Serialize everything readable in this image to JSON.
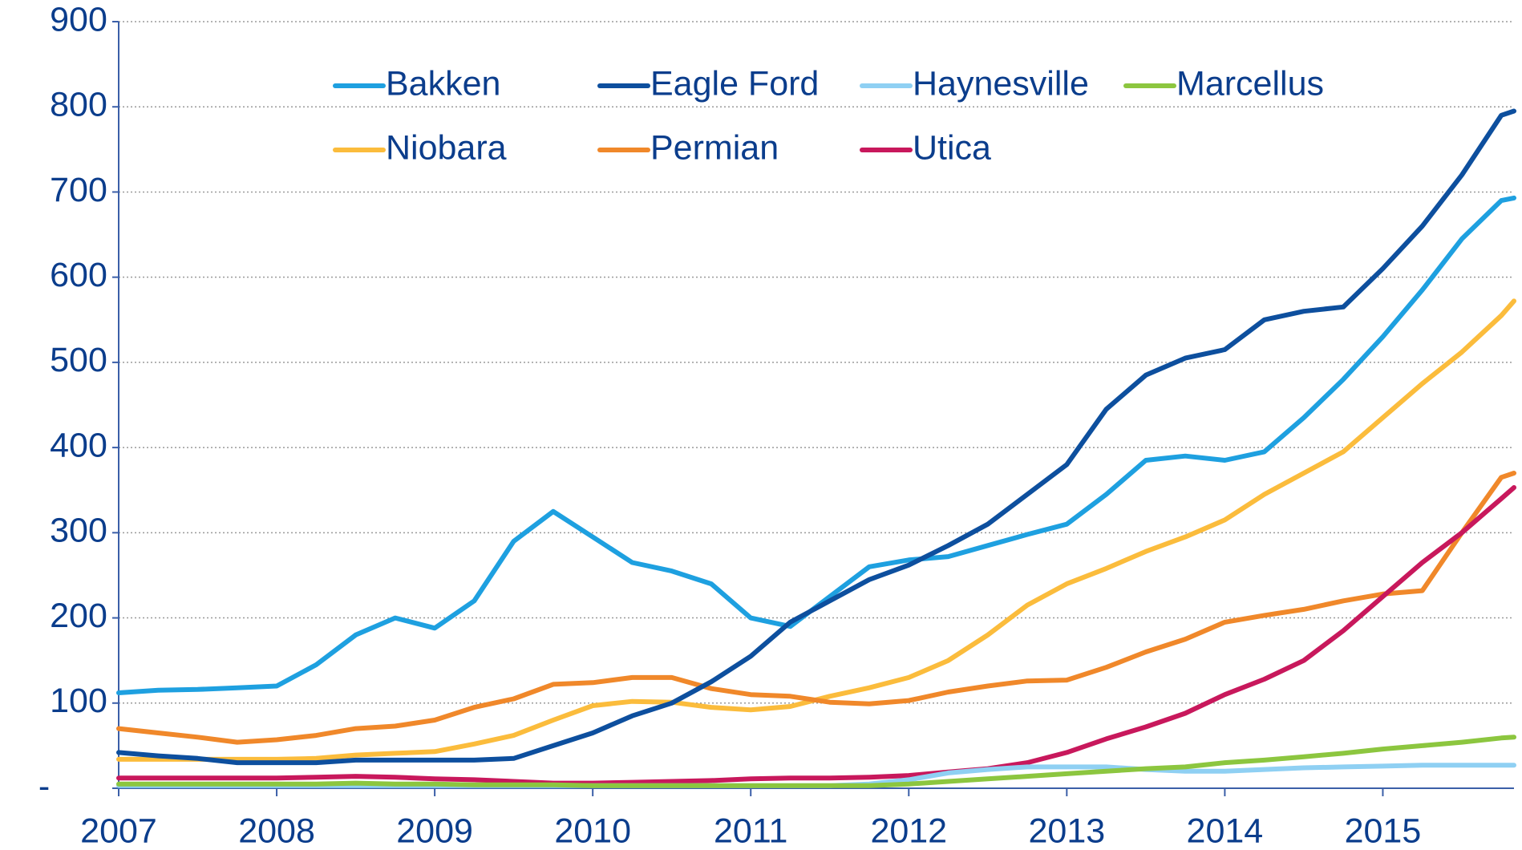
{
  "chart_data": {
    "type": "line",
    "x": [
      2007,
      2007.25,
      2007.5,
      2007.75,
      2008,
      2008.25,
      2008.5,
      2008.75,
      2009,
      2009.25,
      2009.5,
      2009.75,
      2010,
      2010.25,
      2010.5,
      2010.75,
      2011,
      2011.25,
      2011.5,
      2011.75,
      2012,
      2012.25,
      2012.5,
      2012.75,
      2013,
      2013.25,
      2013.5,
      2013.75,
      2014,
      2014.25,
      2014.5,
      2014.75,
      2015,
      2015.25,
      2015.5,
      2015.75,
      2015.83
    ],
    "series": [
      {
        "name": "Bakken",
        "color": "#1ea0e0",
        "values": [
          112,
          115,
          116,
          118,
          120,
          145,
          180,
          200,
          188,
          220,
          290,
          325,
          295,
          265,
          255,
          240,
          200,
          190,
          225,
          260,
          268,
          272,
          285,
          298,
          310,
          345,
          385,
          390,
          385,
          395,
          435,
          480,
          530,
          585,
          645,
          690,
          693
        ]
      },
      {
        "name": "Eagle Ford",
        "color": "#0d4f9e",
        "values": [
          42,
          38,
          35,
          30,
          30,
          30,
          33,
          33,
          33,
          33,
          35,
          50,
          65,
          85,
          100,
          125,
          155,
          195,
          220,
          245,
          262,
          285,
          310,
          345,
          380,
          445,
          485,
          505,
          515,
          550,
          560,
          565,
          610,
          660,
          720,
          790,
          795
        ]
      },
      {
        "name": "Haynesville",
        "color": "#8fd0f3",
        "values": [
          3,
          3,
          3,
          3,
          3,
          3,
          3,
          3,
          3,
          3,
          3,
          3,
          3,
          3,
          3,
          3,
          3,
          3,
          3,
          5,
          10,
          18,
          22,
          25,
          25,
          25,
          22,
          20,
          20,
          22,
          24,
          25,
          26,
          27,
          27,
          27,
          27
        ]
      },
      {
        "name": "Marcellus",
        "color": "#8cc63f",
        "values": [
          5,
          5,
          5,
          5,
          5,
          5,
          6,
          5,
          5,
          4,
          4,
          4,
          3,
          3,
          3,
          3,
          3,
          3,
          3,
          3,
          5,
          8,
          11,
          14,
          17,
          20,
          23,
          25,
          30,
          33,
          37,
          41,
          46,
          50,
          54,
          59,
          60
        ]
      },
      {
        "name": "Niobara",
        "color": "#fbbc3c",
        "values": [
          34,
          34,
          34,
          34,
          34,
          35,
          39,
          41,
          43,
          52,
          62,
          80,
          97,
          102,
          101,
          95,
          92,
          96,
          108,
          118,
          130,
          150,
          180,
          215,
          240,
          258,
          278,
          295,
          315,
          345,
          370,
          395,
          435,
          475,
          512,
          555,
          572
        ]
      },
      {
        "name": "Permian",
        "color": "#f0882a",
        "values": [
          70,
          65,
          60,
          54,
          57,
          62,
          70,
          73,
          80,
          95,
          105,
          122,
          124,
          130,
          130,
          117,
          110,
          108,
          101,
          99,
          103,
          113,
          120,
          126,
          127,
          142,
          160,
          175,
          195,
          203,
          210,
          220,
          228,
          232,
          300,
          365,
          370
        ]
      },
      {
        "name": "Utica",
        "color": "#c8185c",
        "values": [
          12,
          12,
          12,
          12,
          12,
          13,
          14,
          13,
          11,
          10,
          8,
          6,
          6,
          7,
          8,
          9,
          11,
          12,
          12,
          13,
          15,
          19,
          23,
          30,
          42,
          58,
          72,
          88,
          110,
          128,
          150,
          185,
          225,
          265,
          300,
          340,
          353
        ]
      }
    ],
    "xlim": [
      2007,
      2015.83
    ],
    "xticks": [
      2007,
      2008,
      2009,
      2010,
      2011,
      2012,
      2013,
      2014,
      2015
    ],
    "ylim": [
      0,
      900
    ],
    "yticks": [
      {
        "value": 0,
        "label": "-"
      },
      100,
      200,
      300,
      400,
      500,
      600,
      700,
      800,
      900
    ],
    "grid": true,
    "legend": "top"
  }
}
